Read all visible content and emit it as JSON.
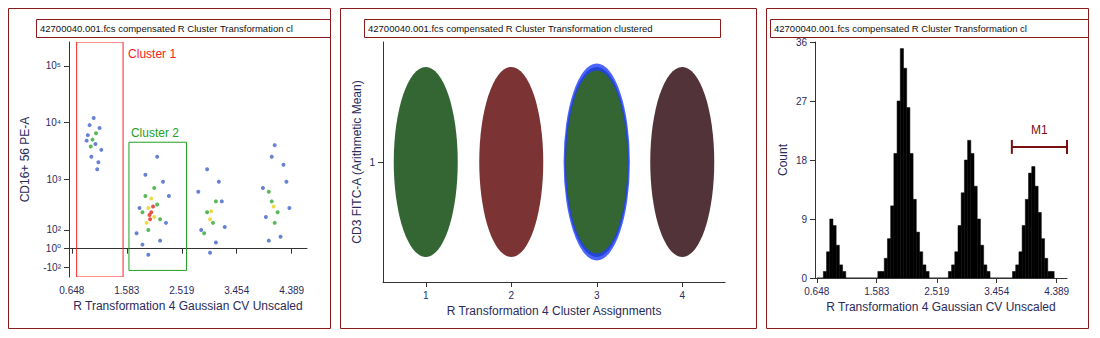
{
  "chart_data": [
    {
      "type": "scatter",
      "title": "42700040.001.fcs compensated R Cluster Transformation cl",
      "x_label": "R Transformation 4 Gaussian CV Unscaled",
      "y_label": "CD16+ 56 PE-A",
      "xlim": [
        0.6,
        4.65
      ],
      "xticks": [
        0.648,
        1.583,
        2.519,
        3.454,
        4.389
      ],
      "ylim": [
        -170,
        262144
      ],
      "yticks": [
        {
          "value": -100,
          "label": "-10²"
        },
        {
          "value": 1,
          "label": "10⁰"
        },
        {
          "value": 100,
          "label": "10²"
        },
        {
          "value": 1000,
          "label": "10³"
        },
        {
          "value": 10000,
          "label": "10⁴"
        },
        {
          "value": 100000,
          "label": "10⁵"
        }
      ],
      "grid": false,
      "marker": "circle",
      "series": [
        {
          "color": "#3f63c8",
          "values": [
            [
              0.92,
              6000
            ],
            [
              1.05,
              4200
            ],
            [
              1.12,
              8000
            ],
            [
              0.98,
              2500
            ],
            [
              1.08,
              1500
            ],
            [
              0.95,
              9000
            ],
            [
              1.15,
              3300
            ],
            [
              0.9,
              4800
            ],
            [
              1.02,
              12000
            ],
            [
              1.1,
              2000
            ],
            [
              1.8,
              300
            ],
            [
              2.25,
              150
            ],
            [
              1.9,
              1200
            ],
            [
              2.15,
              40
            ],
            [
              1.75,
              80
            ],
            [
              2.3,
              500
            ],
            [
              1.95,
              -30
            ],
            [
              2.1,
              2500
            ],
            [
              1.85,
              20
            ],
            [
              2.2,
              900
            ],
            [
              2.85,
              100
            ],
            [
              3.2,
              400
            ],
            [
              2.95,
              1500
            ],
            [
              3.1,
              30
            ],
            [
              2.8,
              600
            ],
            [
              3.25,
              120
            ],
            [
              3.0,
              -20
            ],
            [
              3.15,
              900
            ],
            [
              3.95,
              200
            ],
            [
              4.3,
              900
            ],
            [
              4.05,
              2500
            ],
            [
              4.2,
              60
            ],
            [
              3.9,
              700
            ],
            [
              4.35,
              300
            ],
            [
              4.1,
              4000
            ],
            [
              4.0,
              40
            ],
            [
              4.25,
              1800
            ]
          ]
        },
        {
          "color": "#2fa82f",
          "values": [
            [
              1.0,
              5000
            ],
            [
              1.06,
              6500
            ],
            [
              0.97,
              3800
            ],
            [
              1.9,
              500
            ],
            [
              2.1,
              350
            ],
            [
              1.95,
              100
            ],
            [
              2.05,
              700
            ],
            [
              1.85,
              250
            ],
            [
              2.15,
              180
            ],
            [
              2.95,
              250
            ],
            [
              3.05,
              150
            ],
            [
              3.1,
              400
            ],
            [
              2.9,
              80
            ],
            [
              4.05,
              400
            ],
            [
              4.15,
              250
            ],
            [
              4.0,
              600
            ],
            [
              4.1,
              150
            ]
          ]
        },
        {
          "color": "#e6d21a",
          "values": [
            [
              1.95,
              300
            ],
            [
              2.05,
              200
            ],
            [
              2.0,
              450
            ],
            [
              1.92,
              150
            ],
            [
              3.0,
              180
            ],
            [
              3.02,
              260
            ],
            [
              4.08,
              320
            ]
          ]
        },
        {
          "color": "#e3261b",
          "values": [
            [
              2.0,
              250
            ],
            [
              1.98,
              180
            ],
            [
              2.03,
              320
            ],
            [
              1.97,
              220
            ]
          ]
        }
      ],
      "gates": [
        {
          "label": "Cluster 1",
          "color": "#ff2020",
          "x": [
            0.73,
            1.52
          ],
          "y": [
            -170,
            262144
          ]
        },
        {
          "label": "Cluster 2",
          "color": "#22a022",
          "x": [
            1.62,
            2.6
          ],
          "y": [
            -120,
            4500
          ]
        }
      ]
    },
    {
      "type": "scatter",
      "title": "42700040.001.fcs compensated R Cluster Transformation clustered",
      "x_label": "R Transformation 4 Cluster Assignments",
      "y_label": "CD3 FITC-A (Arithmetic Mean)",
      "categories": [
        "1",
        "2",
        "3",
        "4"
      ],
      "values": [
        1,
        1,
        1,
        1
      ],
      "colors": [
        "#004000",
        "#5a0000",
        "#004000",
        "#260008"
      ],
      "selected": "3",
      "marker": "ellipse",
      "ylim": [
        0.5,
        1.5
      ],
      "yticks": [
        1
      ],
      "grid": false
    },
    {
      "type": "histogram",
      "title": "42700040.001.fcs compensated R Cluster Transformation cl",
      "x_label": "R Transformation 4 Gaussian CV Unscaled",
      "y_label": "Count",
      "xlim": [
        0.62,
        4.55
      ],
      "xticks": [
        0.648,
        1.583,
        2.519,
        3.454,
        4.389
      ],
      "ylim": [
        0,
        36
      ],
      "yticks": [
        0,
        9,
        18,
        27,
        36
      ],
      "grid": false,
      "color": "#000000",
      "bins": [
        0.65,
        0.7,
        0.75,
        0.8,
        0.85,
        0.9,
        0.95,
        1.0,
        1.05,
        1.1,
        1.15,
        1.2,
        1.25,
        1.3,
        1.35,
        1.4,
        1.45,
        1.5,
        1.55,
        1.6,
        1.65,
        1.7,
        1.75,
        1.8,
        1.85,
        1.9,
        1.95,
        2.0,
        2.05,
        2.1,
        2.15,
        2.2,
        2.25,
        2.3,
        2.35,
        2.4,
        2.45,
        2.5,
        2.55,
        2.6,
        2.65,
        2.7,
        2.75,
        2.8,
        2.85,
        2.9,
        2.95,
        3.0,
        3.05,
        3.1,
        3.15,
        3.2,
        3.25,
        3.3,
        3.35,
        3.4,
        3.45,
        3.5,
        3.55,
        3.6,
        3.65,
        3.7,
        3.75,
        3.8,
        3.85,
        3.9,
        3.95,
        4.0,
        4.05,
        4.1,
        4.15,
        4.2,
        4.25,
        4.3,
        4.35
      ],
      "values": [
        0,
        0,
        1,
        4,
        9,
        8,
        5,
        2,
        1,
        0,
        0,
        0,
        0,
        0,
        0,
        0,
        0,
        0,
        0,
        1,
        1,
        3,
        6,
        11,
        19,
        27,
        35,
        32,
        26,
        19,
        12,
        7,
        4,
        2,
        1,
        0,
        0,
        0,
        0,
        0,
        0,
        1,
        2,
        4,
        8,
        13,
        18,
        21,
        19,
        14,
        9,
        5,
        2,
        1,
        0,
        0,
        0,
        0,
        0,
        0,
        0,
        1,
        2,
        4,
        8,
        12,
        16,
        17,
        14,
        10,
        6,
        3,
        1,
        1
      ],
      "markers": [
        {
          "label": "M1",
          "color": "#7b1010",
          "x": [
            3.69,
            4.55
          ],
          "y": 20
        }
      ]
    }
  ]
}
